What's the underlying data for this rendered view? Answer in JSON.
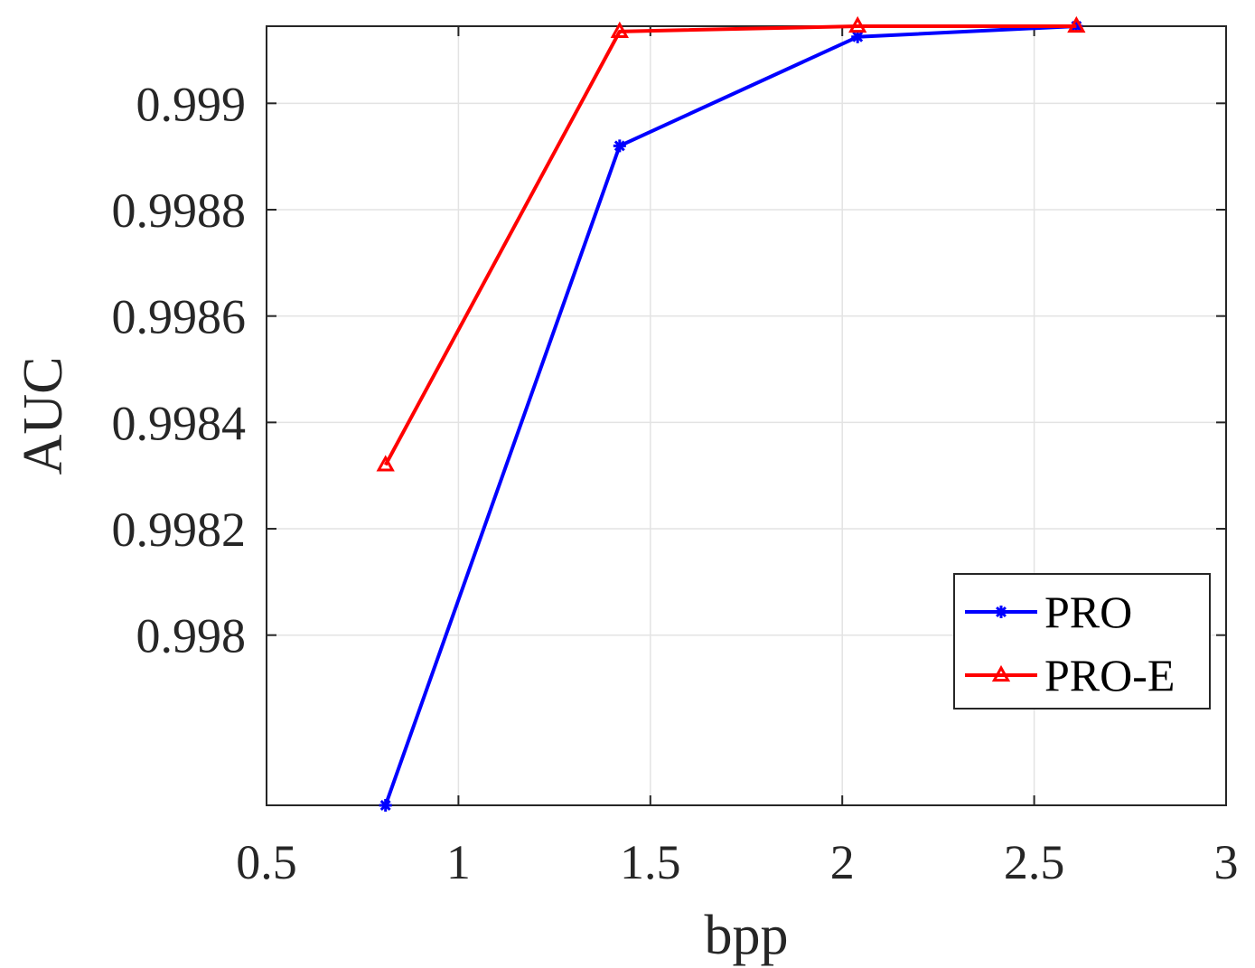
{
  "chart_data": {
    "type": "line",
    "title": "",
    "xlabel": "bpp",
    "ylabel": "AUC",
    "xlim": [
      0.5,
      3
    ],
    "ylim": [
      0.99768,
      0.999145
    ],
    "xticks": [
      0.5,
      1,
      1.5,
      2,
      2.5,
      3
    ],
    "xtick_labels": [
      "0.5",
      "1",
      "1.5",
      "2",
      "2.5",
      "3"
    ],
    "yticks": [
      0.998,
      0.9982,
      0.9984,
      0.9986,
      0.9988,
      0.999
    ],
    "ytick_labels": [
      "0.998",
      "0.9982",
      "0.9984",
      "0.9986",
      "0.9988",
      "0.999"
    ],
    "grid": true,
    "legend_position": "bottom-right",
    "series": [
      {
        "name": "PRO",
        "color": "#0000ff",
        "marker": "asterisk",
        "x": [
          0.81,
          1.42,
          2.04,
          2.61
        ],
        "y": [
          0.99768,
          0.99892,
          0.999125,
          0.999145
        ]
      },
      {
        "name": "PRO-E",
        "color": "#ff0000",
        "marker": "triangle",
        "x": [
          0.81,
          1.42,
          2.04,
          2.61
        ],
        "y": [
          0.99832,
          0.999135,
          0.999145,
          0.999145
        ]
      }
    ]
  }
}
